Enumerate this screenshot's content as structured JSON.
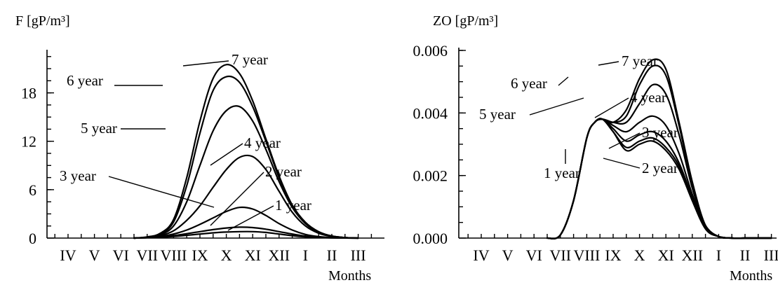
{
  "chart_data": [
    {
      "type": "line",
      "ylabel": "F [gP/m³]",
      "xlabel": "Months",
      "categories": [
        "IV",
        "V",
        "VI",
        "VII",
        "VIII",
        "IX",
        "X",
        "XI",
        "XII",
        "I",
        "II",
        "III"
      ],
      "yticks": [
        "0",
        "6",
        "12",
        "18"
      ],
      "ylim": [
        0,
        23
      ],
      "grid": false,
      "series": [
        {
          "name": "1 year",
          "x": [
            3.5,
            4,
            4.5,
            5,
            5.5,
            6,
            6.5,
            7,
            7.5,
            8,
            8.5,
            9,
            9.5,
            10,
            10.5,
            11,
            11.5,
            12
          ],
          "y": [
            0,
            0.05,
            0.1,
            0.2,
            0.35,
            0.5,
            0.65,
            0.75,
            0.8,
            0.8,
            0.7,
            0.5,
            0.3,
            0.15,
            0.07,
            0.03,
            0.01,
            0
          ]
        },
        {
          "name": "2 year",
          "x": [
            3.5,
            4,
            4.5,
            5,
            5.5,
            6,
            6.5,
            7,
            7.5,
            8,
            8.5,
            9,
            9.5,
            10,
            10.5,
            11,
            11.5,
            12
          ],
          "y": [
            0,
            0.05,
            0.15,
            0.3,
            0.55,
            0.8,
            1.05,
            1.25,
            1.35,
            1.3,
            1.1,
            0.8,
            0.5,
            0.25,
            0.1,
            0.04,
            0.01,
            0
          ]
        },
        {
          "name": "3 year",
          "x": [
            3.5,
            4,
            4.5,
            5,
            5.5,
            6,
            6.5,
            7,
            7.5,
            8,
            8.5,
            9,
            9.5,
            10,
            10.5,
            11,
            11.5,
            12
          ],
          "y": [
            0,
            0.05,
            0.2,
            0.5,
            1.0,
            1.7,
            2.5,
            3.3,
            3.8,
            3.6,
            2.8,
            1.8,
            1.0,
            0.45,
            0.18,
            0.06,
            0.02,
            0
          ]
        },
        {
          "name": "4 year",
          "x": [
            3.5,
            4,
            4.5,
            5,
            5.5,
            6,
            6.5,
            7,
            7.5,
            8,
            8.5,
            9,
            9.5,
            10,
            10.5,
            11,
            11.5,
            12
          ],
          "y": [
            0,
            0.1,
            0.3,
            0.9,
            2.2,
            4.0,
            6.3,
            8.5,
            10.0,
            10.1,
            8.5,
            5.8,
            3.2,
            1.5,
            0.6,
            0.2,
            0.05,
            0
          ]
        },
        {
          "name": "5 year",
          "x": [
            3.5,
            4,
            4.5,
            5,
            5.5,
            6,
            6.5,
            7,
            7.5,
            8,
            8.5,
            9,
            9.5,
            10,
            10.5,
            11,
            11.5,
            12
          ],
          "y": [
            0,
            0.1,
            0.4,
            1.5,
            4.5,
            9.0,
            13.3,
            15.8,
            16.3,
            14.5,
            11.0,
            7.0,
            3.8,
            1.8,
            0.7,
            0.25,
            0.06,
            0
          ]
        },
        {
          "name": "6 year",
          "x": [
            3.5,
            4,
            4.5,
            5,
            5.5,
            6,
            6.5,
            7,
            7.5,
            8,
            8.5,
            9,
            9.5,
            10,
            10.5,
            11,
            11.5,
            12
          ],
          "y": [
            0,
            0.1,
            0.5,
            2.0,
            6.5,
            13.0,
            18.3,
            20.0,
            19.3,
            16.3,
            12.0,
            7.5,
            4.0,
            1.9,
            0.75,
            0.25,
            0.06,
            0
          ]
        },
        {
          "name": "7 year",
          "x": [
            3.5,
            4,
            4.5,
            5,
            5.5,
            6,
            6.5,
            7,
            7.5,
            8,
            8.5,
            9,
            9.5,
            10,
            10.5,
            11,
            11.5,
            12
          ],
          "y": [
            0,
            0.15,
            0.6,
            2.3,
            7.5,
            14.5,
            19.8,
            21.5,
            20.4,
            17.0,
            12.3,
            7.7,
            4.1,
            1.95,
            0.8,
            0.25,
            0.06,
            0
          ]
        }
      ]
    },
    {
      "type": "line",
      "ylabel": "ZO [gP/m³]",
      "xlabel": "Months",
      "categories": [
        "IV",
        "V",
        "VI",
        "VII",
        "VIII",
        "IX",
        "X",
        "XI",
        "XII",
        "I",
        "II",
        "III"
      ],
      "yticks": [
        "0.000",
        "0.002",
        "0.004",
        "0.006"
      ],
      "ylim": [
        0,
        0.006
      ],
      "grid": false,
      "series": [
        {
          "name": "1 year",
          "x": [
            3.5,
            4,
            4.5,
            5,
            5.3,
            5.6,
            6,
            6.5,
            7,
            7.5,
            8,
            8.5,
            9,
            9.5,
            10,
            10.5,
            11,
            11.5,
            12
          ],
          "y": [
            0,
            0.0001,
            0.0012,
            0.0032,
            0.0037,
            0.0038,
            0.0034,
            0.0028,
            0.003,
            0.0031,
            0.0028,
            0.0022,
            0.0012,
            0.0003,
            5e-05,
            0,
            0,
            0,
            0
          ]
        },
        {
          "name": "2 year",
          "x": [
            3.5,
            4,
            4.5,
            5,
            5.3,
            5.6,
            6,
            6.5,
            7,
            7.5,
            8,
            8.5,
            9,
            9.5,
            10,
            10.5,
            11,
            11.5,
            12
          ],
          "y": [
            0,
            0.0001,
            0.0012,
            0.0032,
            0.0037,
            0.0038,
            0.0034,
            0.0029,
            0.0031,
            0.0032,
            0.0029,
            0.0023,
            0.0012,
            0.0003,
            5e-05,
            0,
            0,
            0,
            0
          ]
        },
        {
          "name": "3 year",
          "x": [
            3.5,
            4,
            4.5,
            5,
            5.3,
            5.6,
            6,
            6.5,
            7,
            7.5,
            8,
            8.5,
            9,
            9.5,
            10,
            10.5,
            11,
            11.5,
            12
          ],
          "y": [
            0,
            0.0001,
            0.0012,
            0.0032,
            0.0037,
            0.0038,
            0.0035,
            0.0031,
            0.0033,
            0.0034,
            0.0031,
            0.0024,
            0.0013,
            0.0003,
            5e-05,
            0,
            0,
            0,
            0
          ]
        },
        {
          "name": "4 year",
          "x": [
            3.5,
            4,
            4.5,
            5,
            5.3,
            5.6,
            6,
            6.5,
            7,
            7.5,
            8,
            8.5,
            9,
            9.5,
            10,
            10.5,
            11,
            11.5,
            12
          ],
          "y": [
            0,
            0.0001,
            0.0012,
            0.0032,
            0.0037,
            0.0038,
            0.0036,
            0.0034,
            0.0037,
            0.0039,
            0.0036,
            0.0027,
            0.0014,
            0.0004,
            5e-05,
            0,
            0,
            0,
            0
          ]
        },
        {
          "name": "5 year",
          "x": [
            3.5,
            4,
            4.5,
            5,
            5.3,
            5.6,
            6,
            6.5,
            7,
            7.5,
            8,
            8.5,
            9,
            9.5,
            10,
            10.5,
            11,
            11.5,
            12
          ],
          "y": [
            0,
            0.0001,
            0.0012,
            0.0032,
            0.0037,
            0.0038,
            0.0037,
            0.0037,
            0.0043,
            0.0049,
            0.0046,
            0.0033,
            0.0016,
            0.0004,
            5e-05,
            0,
            0,
            0,
            0
          ]
        },
        {
          "name": "6 year",
          "x": [
            3.5,
            4,
            4.5,
            5,
            5.3,
            5.6,
            6,
            6.5,
            7,
            7.5,
            8,
            8.5,
            9,
            9.5,
            10,
            10.5,
            11,
            11.5,
            12
          ],
          "y": [
            0,
            0.0001,
            0.0012,
            0.0032,
            0.0037,
            0.0038,
            0.0037,
            0.0039,
            0.0049,
            0.0055,
            0.0052,
            0.0036,
            0.0017,
            0.0004,
            5e-05,
            0,
            0,
            0,
            0
          ]
        },
        {
          "name": "7 year",
          "x": [
            3.5,
            4,
            4.5,
            5,
            5.3,
            5.6,
            6,
            6.5,
            7,
            7.5,
            8,
            8.5,
            9,
            9.5,
            10,
            10.5,
            11,
            11.5,
            12
          ],
          "y": [
            0,
            0.0001,
            0.0012,
            0.0032,
            0.0037,
            0.0038,
            0.0037,
            0.0041,
            0.0051,
            0.0057,
            0.0054,
            0.0037,
            0.0018,
            0.0004,
            5e-05,
            0,
            0,
            0,
            0
          ]
        }
      ]
    }
  ]
}
